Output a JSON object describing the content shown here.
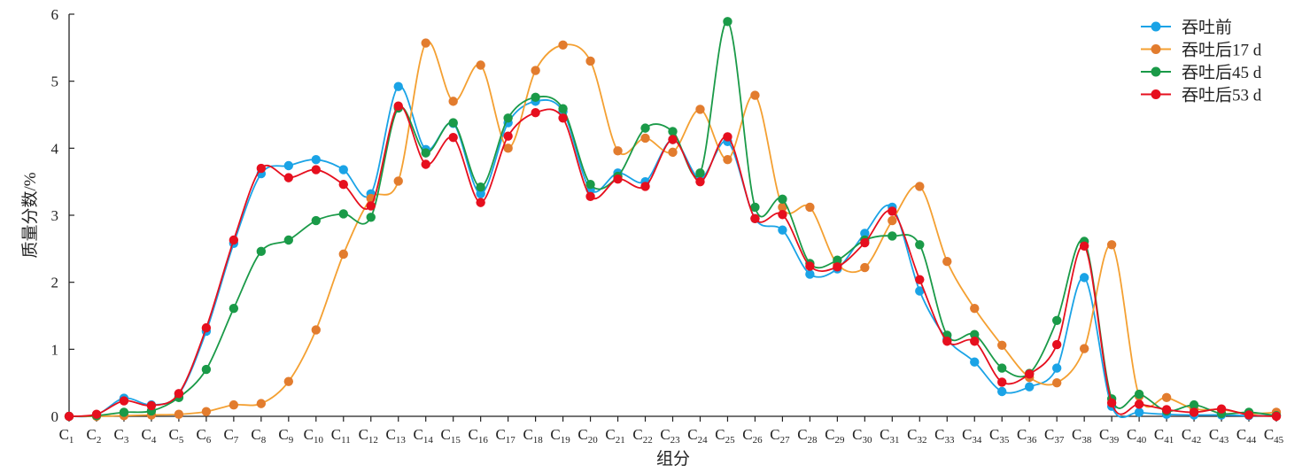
{
  "chart_data": {
    "type": "line",
    "title": "",
    "xlabel": "组分",
    "ylabel": "质量分数/%",
    "ylim": [
      0,
      6
    ],
    "yticks": [
      "0",
      "1",
      "2",
      "3",
      "4",
      "5",
      "6"
    ],
    "grid": false,
    "legend_position": "top-right",
    "categories": [
      "1",
      "2",
      "3",
      "4",
      "5",
      "6",
      "7",
      "8",
      "9",
      "10",
      "11",
      "12",
      "13",
      "14",
      "15",
      "16",
      "17",
      "18",
      "19",
      "20",
      "21",
      "22",
      "23",
      "24",
      "25",
      "26",
      "27",
      "28",
      "29",
      "30",
      "31",
      "32",
      "33",
      "34",
      "35",
      "36",
      "37",
      "38",
      "39",
      "40",
      "41",
      "42",
      "43",
      "44",
      "45"
    ],
    "category_prefix": "C",
    "series": [
      {
        "name": "吞吐前",
        "color": "#1aa3e6",
        "marker_color": "#1aa3e6",
        "values": [
          0,
          0.02,
          0.27,
          0.17,
          0.33,
          1.27,
          2.58,
          3.62,
          3.74,
          3.83,
          3.68,
          3.32,
          4.92,
          3.98,
          4.37,
          3.32,
          4.38,
          4.7,
          4.55,
          3.38,
          3.63,
          3.5,
          4.13,
          3.55,
          4.1,
          2.95,
          2.78,
          2.12,
          2.2,
          2.73,
          3.12,
          1.87,
          1.15,
          0.81,
          0.37,
          0.44,
          0.72,
          2.07,
          0.15,
          0.06,
          0.03,
          0.02,
          0.02,
          0.01,
          0.01
        ]
      },
      {
        "name": "吞吐后17 d",
        "color": "#f4a032",
        "marker_color": "#e27c2e",
        "values": [
          0,
          0,
          0.01,
          0.02,
          0.03,
          0.07,
          0.17,
          0.19,
          0.52,
          1.29,
          2.42,
          3.25,
          3.51,
          5.57,
          4.7,
          5.24,
          4.0,
          5.16,
          5.54,
          5.3,
          3.96,
          4.15,
          3.94,
          4.58,
          3.83,
          4.79,
          3.12,
          3.12,
          2.27,
          2.22,
          2.92,
          3.43,
          2.31,
          1.61,
          1.06,
          0.58,
          0.5,
          1.01,
          2.56,
          0.3,
          0.28,
          0.11,
          0.1,
          0.04,
          0.06
        ]
      },
      {
        "name": "吞吐后45 d",
        "color": "#1a9a48",
        "marker_color": "#1a9a48",
        "values": [
          0,
          0.01,
          0.06,
          0.08,
          0.28,
          0.7,
          1.61,
          2.46,
          2.63,
          2.92,
          3.02,
          2.97,
          4.6,
          3.93,
          4.38,
          3.42,
          4.45,
          4.76,
          4.59,
          3.46,
          3.58,
          4.3,
          4.25,
          3.63,
          5.89,
          3.12,
          3.24,
          2.28,
          2.33,
          2.63,
          2.69,
          2.56,
          1.21,
          1.22,
          0.72,
          0.64,
          1.43,
          2.61,
          0.26,
          0.33,
          0.08,
          0.17,
          0.04,
          0.06,
          0.01
        ]
      },
      {
        "name": "吞吐后53 d",
        "color": "#e60f1e",
        "marker_color": "#e60f1e",
        "values": [
          0,
          0.03,
          0.23,
          0.16,
          0.34,
          1.32,
          2.63,
          3.7,
          3.56,
          3.68,
          3.46,
          3.14,
          4.63,
          3.76,
          4.16,
          3.19,
          4.18,
          4.53,
          4.45,
          3.28,
          3.54,
          3.43,
          4.13,
          3.5,
          4.17,
          2.95,
          3.01,
          2.24,
          2.23,
          2.59,
          3.06,
          2.04,
          1.12,
          1.12,
          0.51,
          0.63,
          1.07,
          2.54,
          0.2,
          0.18,
          0.1,
          0.06,
          0.11,
          0.02,
          0.0
        ]
      }
    ]
  }
}
